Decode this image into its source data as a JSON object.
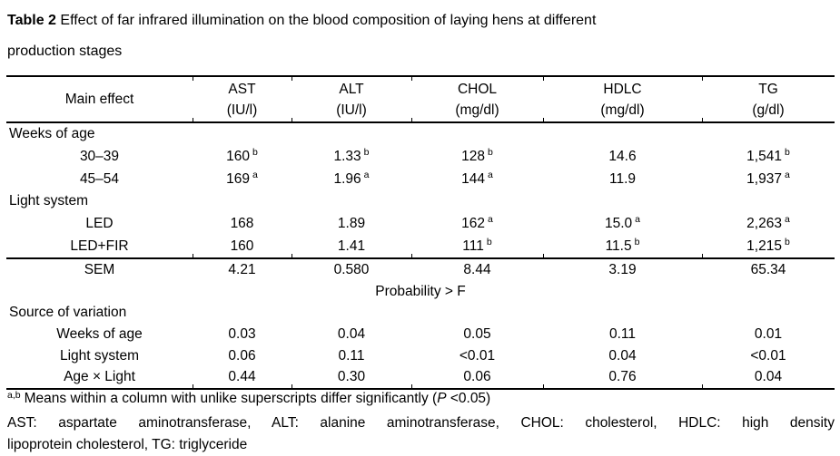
{
  "page": {
    "background": "#ffffff",
    "text_color": "#000000"
  },
  "caption": {
    "label": "Table 2",
    "line1_rest": " Effect of far infrared illumination on the blood composition of laying hens at different",
    "line2": "production stages"
  },
  "table": {
    "header": {
      "main_label": "Main effect",
      "columns": [
        {
          "name": "AST",
          "unit": "(IU/l)"
        },
        {
          "name": "ALT",
          "unit": "(IU/l)"
        },
        {
          "name": "CHOL",
          "unit": "(mg/dl)"
        },
        {
          "name": "HDLC",
          "unit": "(mg/dl)"
        },
        {
          "name": "TG",
          "unit": "(g/dl)"
        }
      ]
    },
    "rows": [
      {
        "type": "section",
        "label": "Weeks of age"
      },
      {
        "type": "item",
        "label": "30–39",
        "values": [
          "160",
          "1.33",
          "128",
          "14.6",
          "1,541"
        ],
        "sups": [
          "b",
          "b",
          "b",
          "",
          "b"
        ]
      },
      {
        "type": "item",
        "label": "45–54",
        "values": [
          "169",
          "1.96",
          "144",
          "11.9",
          "1,937"
        ],
        "sups": [
          "a",
          "a",
          "a",
          "",
          "a"
        ]
      },
      {
        "type": "section",
        "label": "Light system"
      },
      {
        "type": "item",
        "label": "LED",
        "values": [
          "168",
          "1.89",
          "162",
          "15.0",
          "2,263"
        ],
        "sups": [
          "",
          "",
          "a",
          "a",
          "a"
        ]
      },
      {
        "type": "item",
        "label": "LED+FIR",
        "values": [
          "160",
          "1.41",
          "111",
          "11.5",
          "1,215"
        ],
        "sups": [
          "",
          "",
          "b",
          "b",
          "b"
        ]
      },
      {
        "type": "rule"
      },
      {
        "type": "item",
        "label": "SEM",
        "values": [
          "4.21",
          "0.580",
          "8.44",
          "3.19",
          "65.34"
        ],
        "sups": [
          "",
          "",
          "",
          "",
          ""
        ]
      },
      {
        "type": "span",
        "label": "Probability > F"
      },
      {
        "type": "section",
        "label": "Source of variation"
      },
      {
        "type": "item",
        "label": "Weeks of age",
        "values": [
          "0.03",
          "0.04",
          "0.05",
          "0.11",
          "0.01"
        ],
        "sups": [
          "",
          "",
          "",
          "",
          ""
        ]
      },
      {
        "type": "item",
        "label": "Light system",
        "values": [
          "0.06",
          "0.11",
          "<0.01",
          "0.04",
          "<0.01"
        ],
        "sups": [
          "",
          "",
          "",
          "",
          ""
        ]
      },
      {
        "type": "item",
        "label": "Age × Light",
        "values": [
          "0.44",
          "0.30",
          "0.06",
          "0.76",
          "0.04"
        ],
        "sups": [
          "",
          "",
          "",
          "",
          ""
        ]
      }
    ]
  },
  "footnotes": {
    "note1": {
      "sup": "a,b",
      "pre": "Means within a column with unlike superscripts differ significantly (",
      "italic": "P",
      "post": " <0.05)"
    },
    "note2_line1": "AST: aspartate aminotransferase, ALT: alanine aminotransferase, CHOL: cholesterol, HDLC: high density",
    "note2_line2": "lipoprotein cholesterol, TG: triglyceride"
  }
}
